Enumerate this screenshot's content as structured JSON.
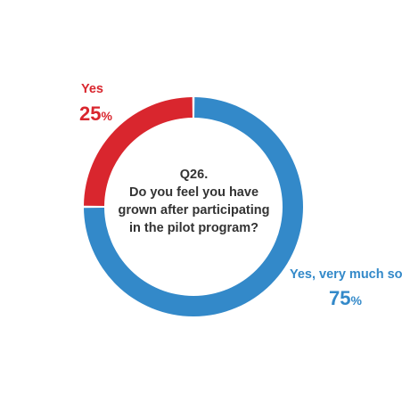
{
  "question": {
    "number": "Q26.",
    "lines": [
      "Do you feel you have",
      "grown after participating",
      "in the pilot program?"
    ]
  },
  "chart_data": {
    "type": "pie",
    "donut": true,
    "title": "Q26. Do you feel you have grown after participating in the pilot program?",
    "slices": [
      {
        "label": "Yes, very much so",
        "value": 75,
        "display_value": "75",
        "unit": "%",
        "color": "#3389c9"
      },
      {
        "label": "Yes",
        "value": 25,
        "display_value": "25",
        "unit": "%",
        "color": "#d9262e"
      }
    ]
  }
}
